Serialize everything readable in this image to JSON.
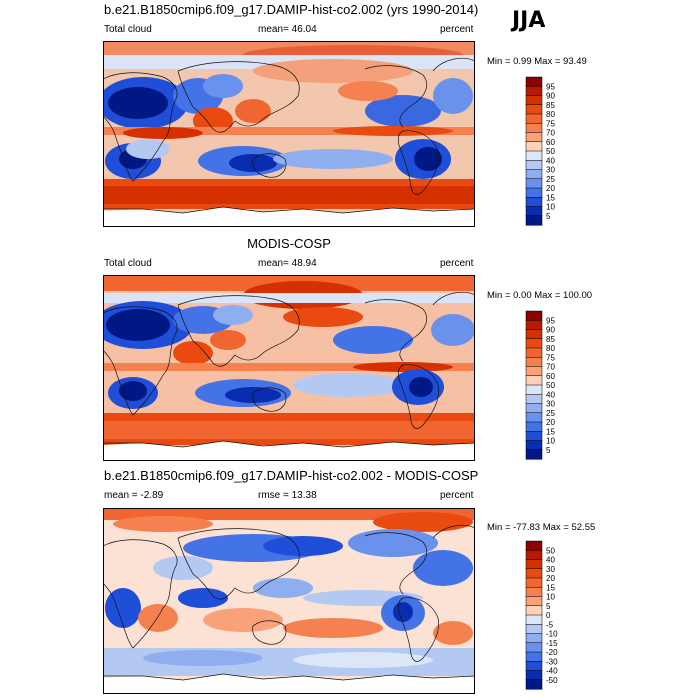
{
  "season": "JJA",
  "panels": [
    {
      "title": "b.e21.B1850cmip6.f09_g17.DAMIP-hist-co2.002 (yrs 1990-2014)",
      "left": "Total cloud",
      "center": "mean=  46.04",
      "right": "percent",
      "minmax": "Min =   0.99 Max =  93.49",
      "colorbar_labels": [
        "95",
        "90",
        "85",
        "80",
        "75",
        "70",
        "60",
        "50",
        "40",
        "30",
        "25",
        "20",
        "15",
        "10",
        "5"
      ],
      "colorbar_colors": [
        "#8b0000",
        "#b81a00",
        "#d73000",
        "#e84a10",
        "#f06530",
        "#f58050",
        "#f9a27a",
        "#fdd0b8",
        "#dbe6f6",
        "#b3c9f2",
        "#8eaef0",
        "#6a92ec",
        "#4373e6",
        "#1f4fd8",
        "#0a2db0",
        "#001884"
      ]
    },
    {
      "title": "MODIS-COSP",
      "left": "Total cloud",
      "center": "mean=  48.94",
      "right": "percent",
      "minmax": "Min =   0.00 Max = 100.00",
      "colorbar_labels": [
        "95",
        "90",
        "85",
        "80",
        "75",
        "70",
        "60",
        "50",
        "40",
        "30",
        "25",
        "20",
        "15",
        "10",
        "5"
      ],
      "colorbar_colors": [
        "#8b0000",
        "#b81a00",
        "#d73000",
        "#e84a10",
        "#f06530",
        "#f58050",
        "#f9a27a",
        "#fdd0b8",
        "#dbe6f6",
        "#b3c9f2",
        "#8eaef0",
        "#6a92ec",
        "#4373e6",
        "#1f4fd8",
        "#0a2db0",
        "#001884"
      ]
    },
    {
      "title": "b.e21.B1850cmip6.f09_g17.DAMIP-hist-co2.002 - MODIS-COSP",
      "left": "mean =  -2.89",
      "center": "rmse =  13.38",
      "right": "percent",
      "minmax": "Min = -77.83 Max =  52.55",
      "colorbar_labels": [
        "50",
        "40",
        "30",
        "20",
        "15",
        "10",
        "5",
        "0",
        "-5",
        "-10",
        "-15",
        "-20",
        "-30",
        "-40",
        "-50"
      ],
      "colorbar_colors": [
        "#8b0000",
        "#b81a00",
        "#d73000",
        "#e84a10",
        "#f06530",
        "#f58050",
        "#f9a27a",
        "#fdd0b8",
        "#dbe6f6",
        "#b3c9f2",
        "#8eaef0",
        "#6a92ec",
        "#4373e6",
        "#1f4fd8",
        "#0a2db0",
        "#001884"
      ]
    }
  ]
}
